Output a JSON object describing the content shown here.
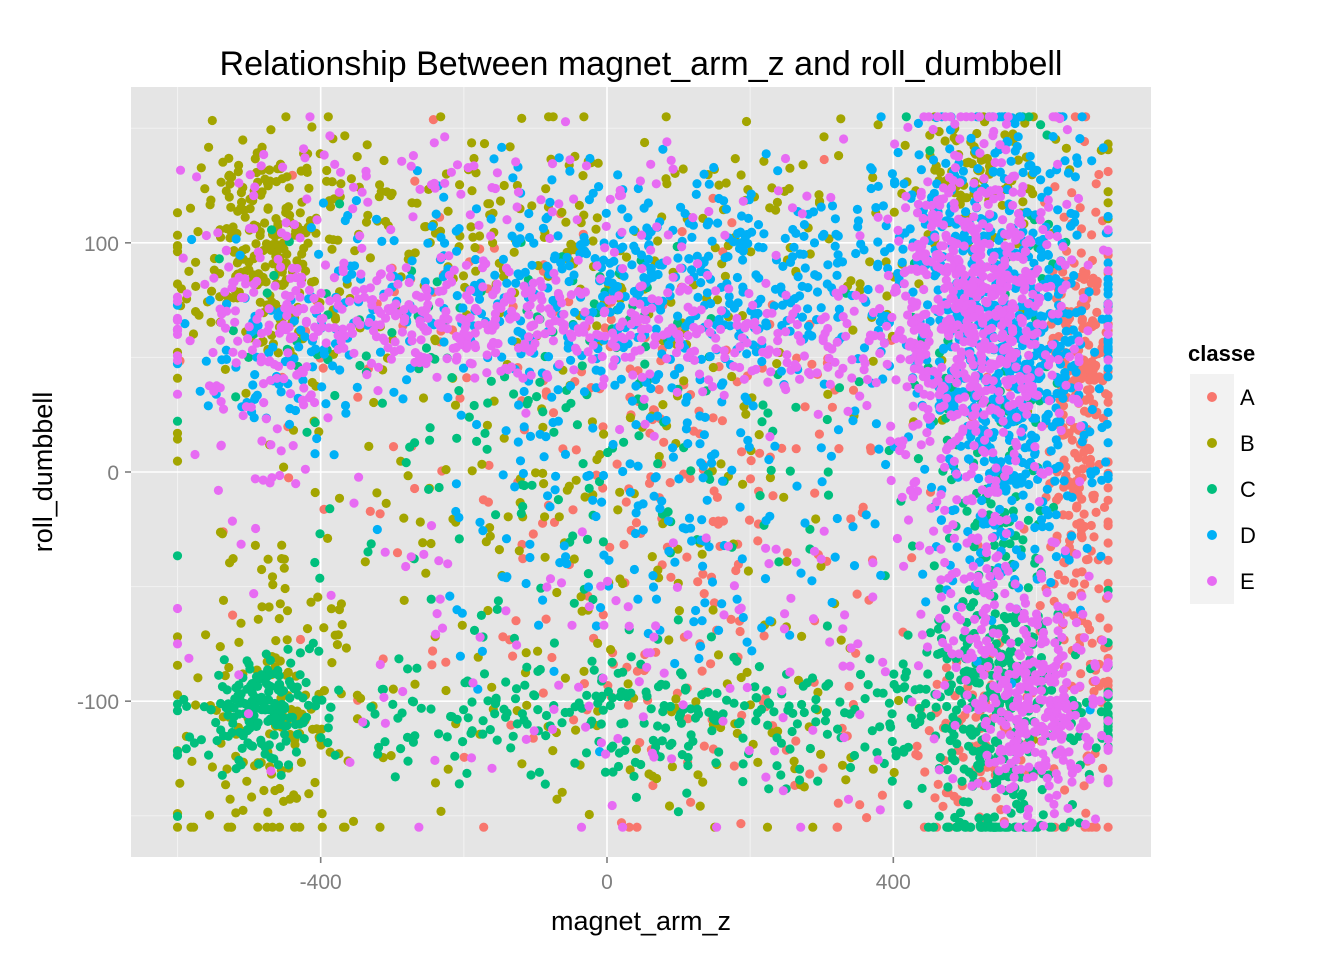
{
  "chart_data": {
    "type": "scatter",
    "title": "Relationship Between magnet_arm_z and roll_dumbbell",
    "xlabel": "magnet_arm_z",
    "ylabel": "roll_dumbbell",
    "xlim": [
      -665,
      760
    ],
    "ylim": [
      -168,
      168
    ],
    "x_ticks": [
      -400,
      0,
      400
    ],
    "x_tick_labels": [
      "-400",
      "0",
      "400"
    ],
    "y_ticks": [
      -100,
      0,
      100
    ],
    "y_tick_labels": [
      "-100",
      "0",
      "100"
    ],
    "grid": true,
    "legend": {
      "title": "classe",
      "position": "right",
      "entries": [
        "A",
        "B",
        "C",
        "D",
        "E"
      ]
    },
    "colors": {
      "A": "#F8766D",
      "B": "#A3A500",
      "C": "#00BF7D",
      "D": "#00B0F6",
      "E": "#E76BF3",
      "panel": "#E5E5E5",
      "grid_major": "#FFFFFF",
      "grid_minor": "#F2F2F2"
    },
    "series": [
      {
        "name": "A",
        "color": "#F8766D",
        "clusters": [
          {
            "cx": 660,
            "cy": 0,
            "sx": 25,
            "sy": 70,
            "n": 260
          },
          {
            "cx": 660,
            "cy": 50,
            "sx": 25,
            "sy": 15,
            "n": 60
          },
          {
            "cx": 520,
            "cy": -125,
            "sx": 40,
            "sy": 20,
            "n": 80
          },
          {
            "cx": 100,
            "cy": 0,
            "sx": 230,
            "sy": 40,
            "n": 160
          },
          {
            "cx": 150,
            "cy": -100,
            "sx": 260,
            "sy": 35,
            "n": 90
          },
          {
            "cx": 0,
            "cy": 60,
            "sx": 260,
            "sy": 40,
            "n": 70
          }
        ]
      },
      {
        "name": "B",
        "color": "#A3A500",
        "clusters": [
          {
            "cx": -470,
            "cy": 100,
            "sx": 55,
            "sy": 25,
            "n": 240
          },
          {
            "cx": -470,
            "cy": -110,
            "sx": 55,
            "sy": 30,
            "n": 140
          },
          {
            "cx": 0,
            "cy": 110,
            "sx": 300,
            "sy": 25,
            "n": 230
          },
          {
            "cx": -100,
            "cy": 0,
            "sx": 260,
            "sy": 60,
            "n": 200
          },
          {
            "cx": 520,
            "cy": 130,
            "sx": 50,
            "sy": 15,
            "n": 90
          },
          {
            "cx": 0,
            "cy": -110,
            "sx": 280,
            "sy": 25,
            "n": 90
          }
        ]
      },
      {
        "name": "C",
        "color": "#00BF7D",
        "clusters": [
          {
            "cx": -480,
            "cy": -103,
            "sx": 40,
            "sy": 12,
            "n": 150
          },
          {
            "cx": 100,
            "cy": -105,
            "sx": 330,
            "sy": 15,
            "n": 380
          },
          {
            "cx": 540,
            "cy": -110,
            "sx": 50,
            "sy": 40,
            "n": 260
          },
          {
            "cx": 540,
            "cy": 0,
            "sx": 50,
            "sy": 80,
            "n": 180
          },
          {
            "cx": 0,
            "cy": 0,
            "sx": 250,
            "sy": 50,
            "n": 140
          },
          {
            "cx": -200,
            "cy": 60,
            "sx": 180,
            "sy": 20,
            "n": 70
          }
        ]
      },
      {
        "name": "D",
        "color": "#00B0F6",
        "clusters": [
          {
            "cx": 560,
            "cy": 70,
            "sx": 70,
            "sy": 50,
            "n": 460
          },
          {
            "cx": 120,
            "cy": 75,
            "sx": 290,
            "sy": 18,
            "n": 440
          },
          {
            "cx": 150,
            "cy": 110,
            "sx": 230,
            "sy": 15,
            "n": 150
          },
          {
            "cx": 50,
            "cy": 0,
            "sx": 200,
            "sy": 45,
            "n": 240
          },
          {
            "cx": 560,
            "cy": 5,
            "sx": 60,
            "sy": 30,
            "n": 140
          },
          {
            "cx": -450,
            "cy": 50,
            "sx": 60,
            "sy": 15,
            "n": 70
          }
        ]
      },
      {
        "name": "E",
        "color": "#E76BF3",
        "clusters": [
          {
            "cx": 520,
            "cy": 70,
            "sx": 65,
            "sy": 40,
            "n": 620
          },
          {
            "cx": 600,
            "cy": -100,
            "sx": 50,
            "sy": 25,
            "n": 300
          },
          {
            "cx": -200,
            "cy": 65,
            "sx": 200,
            "sy": 12,
            "n": 340
          },
          {
            "cx": 200,
            "cy": 60,
            "sx": 220,
            "sy": 18,
            "n": 230
          },
          {
            "cx": -480,
            "cy": 60,
            "sx": 50,
            "sy": 40,
            "n": 120
          },
          {
            "cx": 100,
            "cy": -80,
            "sx": 300,
            "sy": 40,
            "n": 140
          },
          {
            "cx": 520,
            "cy": -40,
            "sx": 50,
            "sy": 40,
            "n": 120
          },
          {
            "cx": -100,
            "cy": 120,
            "sx": 250,
            "sy": 12,
            "n": 80
          }
        ]
      }
    ]
  }
}
